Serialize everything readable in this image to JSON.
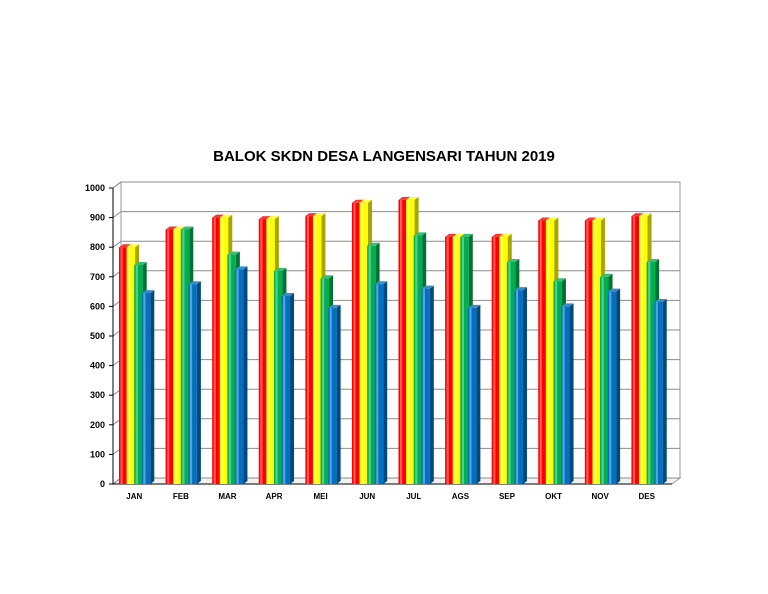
{
  "chart_data": {
    "type": "bar",
    "title": "BALOK SKDN DESA LANGENSARI TAHUN 2019",
    "xlabel": "",
    "ylabel": "",
    "ylim": [
      0,
      1000
    ],
    "yticks": [
      0,
      100,
      200,
      300,
      400,
      500,
      600,
      700,
      800,
      900,
      1000
    ],
    "grid": true,
    "legend": "none",
    "style": "3d-cylinder",
    "categories": [
      "JAN",
      "FEB",
      "MAR",
      "APR",
      "MEI",
      "JUN",
      "JUL",
      "AGS",
      "SEP",
      "OKT",
      "NOV",
      "DES"
    ],
    "series": [
      {
        "color": "#ff0000",
        "values": [
          800,
          860,
          900,
          895,
          905,
          950,
          960,
          835,
          835,
          890,
          890,
          905
        ]
      },
      {
        "color": "#ffff00",
        "values": [
          800,
          860,
          900,
          895,
          905,
          950,
          960,
          835,
          835,
          890,
          890,
          905
        ]
      },
      {
        "color": "#00b050",
        "values": [
          740,
          860,
          775,
          720,
          695,
          805,
          840,
          835,
          750,
          685,
          700,
          750
        ]
      },
      {
        "color": "#0070c0",
        "values": [
          645,
          675,
          725,
          635,
          595,
          675,
          660,
          595,
          655,
          600,
          650,
          615
        ]
      }
    ]
  }
}
